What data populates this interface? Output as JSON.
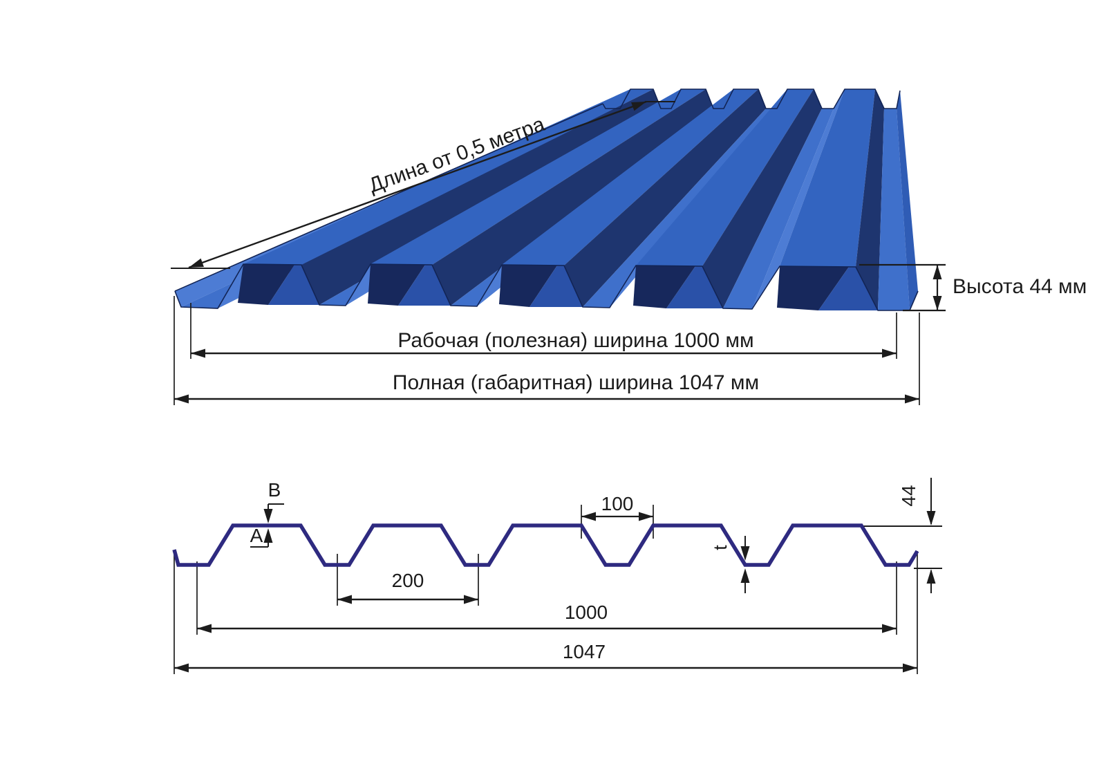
{
  "top_view": {
    "length_label": "Длина от 0,5 метра",
    "height_label": "Высота 44 мм",
    "working_width_label": "Рабочая (полезная) ширина 1000 мм",
    "full_width_label": "Полная (габаритная) ширина 1047 мм"
  },
  "cross_section": {
    "top_side_label": "B",
    "bottom_side_label": "A",
    "groove_top_width": "100",
    "pitch": "200",
    "thickness_label": "t",
    "profile_height": "44",
    "working_width": "1000",
    "full_width": "1047"
  },
  "colors": {
    "profile_line": "#2e2a80",
    "dim_line": "#1c1c1c",
    "sheet_light": "#4d7cd4",
    "sheet_trough": "#3f70cb",
    "sheet_crest": "#3364c0",
    "sheet_dark_slope": "#1e356f",
    "sheet_front_dark": "#17285c",
    "sheet_front_mid": "#2a51a8",
    "sheet_lip": "#2f5cb5",
    "sheet_edge": "#122455"
  }
}
